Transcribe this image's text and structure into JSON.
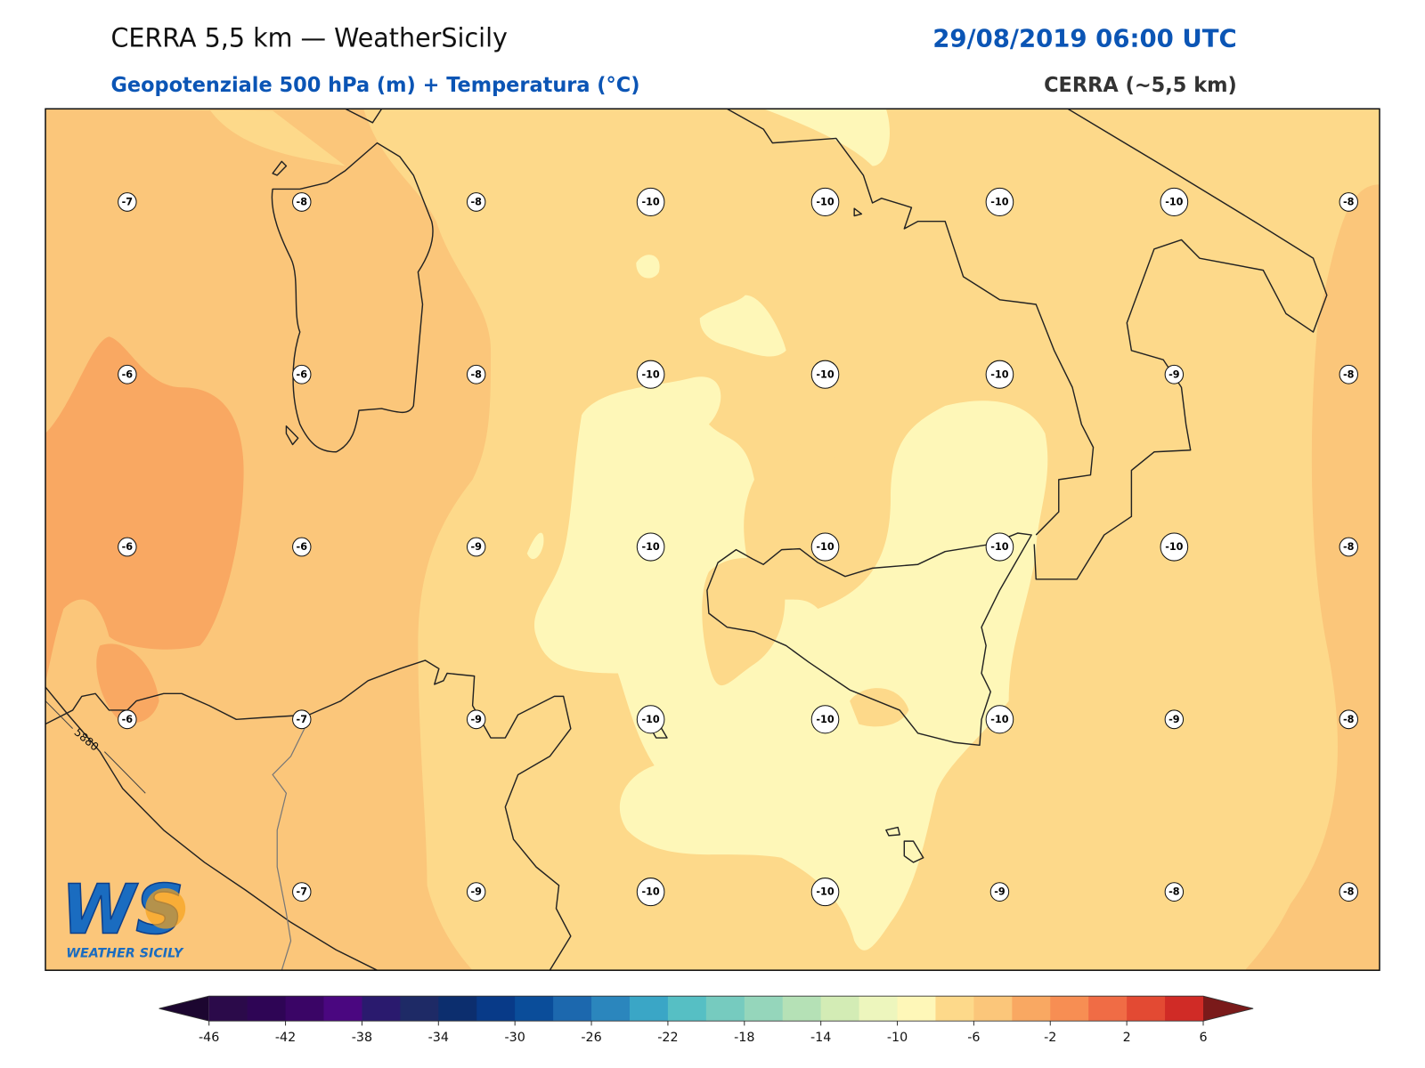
{
  "header": {
    "title": "CERRA 5,5 km — WeatherSicily",
    "datetime": "29/08/2019 06:00 UTC",
    "subtitle": "Geopotenziale 500 hPa (m) + Temperatura (°C)",
    "model": "CERRA (~5,5 km)"
  },
  "map": {
    "temperature_labels": [
      [
        -7,
        -8,
        -8,
        -10,
        -10,
        -10,
        -10,
        -8
      ],
      [
        -6,
        -6,
        -8,
        -10,
        -10,
        -10,
        -9,
        -8
      ],
      [
        -6,
        -6,
        -9,
        -10,
        -10,
        -10,
        -10,
        -8
      ],
      [
        -6,
        -7,
        -9,
        -10,
        -10,
        -10,
        -9,
        -8
      ],
      [
        null,
        -7,
        -9,
        -10,
        -10,
        -9,
        -8,
        -8
      ]
    ],
    "contour_labels": [
      5880
    ]
  },
  "colorbar": {
    "ticks": [
      -46,
      -42,
      -38,
      -34,
      -30,
      -26,
      -22,
      -18,
      -14,
      -10,
      -6,
      -2,
      2,
      6
    ],
    "colors": [
      "#2b0a4a",
      "#2e0555",
      "#3a0566",
      "#4a0780",
      "#2a1a6e",
      "#1e2a66",
      "#0c2e6e",
      "#083a88",
      "#0a4d9a",
      "#1c68ae",
      "#2b86bd",
      "#3aa6c6",
      "#56bfc4",
      "#76cbbf",
      "#95d6bb",
      "#b5e1b6",
      "#d3ecb5",
      "#edf6bd",
      "#fef7b8",
      "#fdd98a",
      "#fbc67a",
      "#f9a862",
      "#f78e53",
      "#f06c45",
      "#e34a33",
      "#d02b26"
    ],
    "extend_colors": [
      "#1c0630",
      "#7a1a1a"
    ]
  },
  "logo": {
    "mark": "WS",
    "text": "WEATHER SICILY"
  }
}
